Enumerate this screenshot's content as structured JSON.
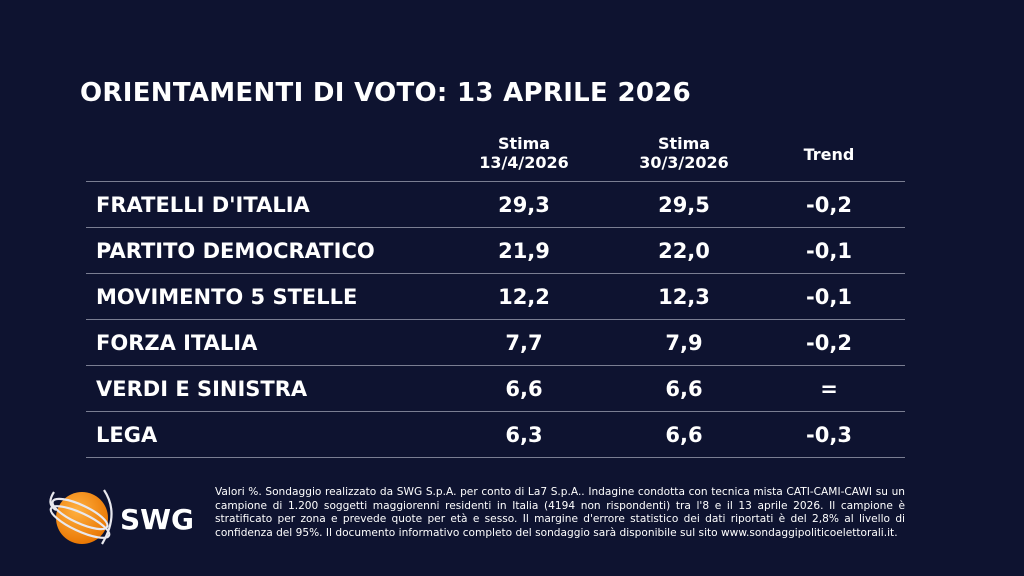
{
  "title": "ORIENTAMENTI DI VOTO: 13 APRILE 2026",
  "columns": [
    {
      "line1": "Stima",
      "line2": "13/4/2026"
    },
    {
      "line1": "Stima",
      "line2": "30/3/2026"
    },
    {
      "line1": "Trend",
      "line2": ""
    }
  ],
  "rows": [
    {
      "party": "FRATELLI D'ITALIA",
      "current": "29,3",
      "previous": "29,5",
      "trend": "-0,2"
    },
    {
      "party": "PARTITO DEMOCRATICO",
      "current": "21,9",
      "previous": "22,0",
      "trend": "-0,1"
    },
    {
      "party": "MOVIMENTO 5 STELLE",
      "current": "12,2",
      "previous": "12,3",
      "trend": "-0,1"
    },
    {
      "party": "FORZA ITALIA",
      "current": "7,7",
      "previous": "7,9",
      "trend": "-0,2"
    },
    {
      "party": "VERDI E SINISTRA",
      "current": "6,6",
      "previous": "6,6",
      "trend": "="
    },
    {
      "party": "LEGA",
      "current": "6,3",
      "previous": "6,6",
      "trend": "-0,3"
    }
  ],
  "note": "Valori %. Sondaggio realizzato da SWG S.p.A. per conto di La7 S.p.A.. Indagine condotta con tecnica mista CATI-CAMI-CAWI su un campione di 1.200 soggetti maggiorenni residenti in Italia (4194 non rispondenti) tra l'8 e il 13 aprile 2026. Il campione è stratificato per zona e prevede quote per età e sesso. Il margine d'errore statistico dei dati riportati è del 2,8% al livello di confidenza del 95%. Il documento informativo completo del sondaggio sarà disponibile sul sito www.sondaggipoliticoelettorali.it.",
  "logo": {
    "text": "SWG",
    "color": "#f39200"
  }
}
